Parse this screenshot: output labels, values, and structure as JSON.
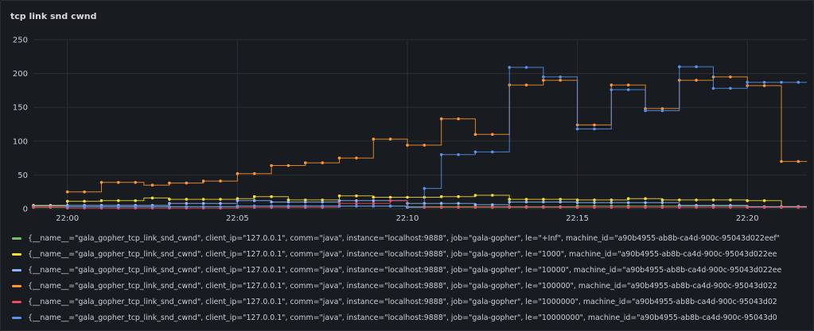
{
  "panel": {
    "title": "tcp link snd cwnd"
  },
  "chart_data": {
    "type": "line",
    "title": "tcp link snd cwnd",
    "ylim": [
      0,
      250
    ],
    "yticks": [
      0,
      50,
      100,
      150,
      200,
      250
    ],
    "xlim": [
      "21:59:00",
      "22:21:45"
    ],
    "xticks": [
      "22:00",
      "22:05",
      "22:10",
      "22:15",
      "22:20"
    ],
    "grid": true,
    "legend_position": "bottom",
    "series": [
      {
        "name": "{__name__=\"gala_gopher_tcp_link_snd_cwnd\", client_ip=\"127.0.0.1\", comm=\"java\", instance=\"localhost:9888\", job=\"gala-gopher\", le=\"+Inf\", machine_id=\"a90b4955-ab8b-ca4d-900c-95043d022eef\"",
        "color": "#73bf69",
        "points": [
          [
            "21:59:00",
            2
          ],
          [
            "22:00:00",
            3
          ],
          [
            "22:05:00",
            4
          ],
          [
            "22:10:00",
            3
          ],
          [
            "22:15:00",
            4
          ],
          [
            "22:20:00",
            3
          ],
          [
            "22:21:45",
            3
          ]
        ]
      },
      {
        "name": "{__name__=\"gala_gopher_tcp_link_snd_cwnd\", client_ip=\"127.0.0.1\", comm=\"java\", instance=\"localhost:9888\", job=\"gala-gopher\", le=\"1000\", machine_id=\"a90b4955-ab8b-ca4d-900c-95043d022ee",
        "color": "#fade2a",
        "points": [
          [
            "21:59:00",
            5
          ],
          [
            "22:00:00",
            11
          ],
          [
            "22:01:00",
            12
          ],
          [
            "22:02:15",
            16
          ],
          [
            "22:03:00",
            14
          ],
          [
            "22:05:00",
            15
          ],
          [
            "22:05:30",
            18
          ],
          [
            "22:06:30",
            13
          ],
          [
            "22:08:00",
            19
          ],
          [
            "22:09:00",
            17
          ],
          [
            "22:11:00",
            18
          ],
          [
            "22:12:00",
            20
          ],
          [
            "22:13:00",
            14
          ],
          [
            "22:15:00",
            13
          ],
          [
            "22:16:30",
            15
          ],
          [
            "22:17:30",
            13
          ],
          [
            "22:20:00",
            12
          ],
          [
            "22:21:00",
            3
          ],
          [
            "22:21:45",
            3
          ]
        ]
      },
      {
        "name": "{__name__=\"gala_gopher_tcp_link_snd_cwnd\", client_ip=\"127.0.0.1\", comm=\"java\", instance=\"localhost:9888\", job=\"gala-gopher\", le=\"10000\", machine_id=\"a90b4955-ab8b-ca4d-900c-95043d022ee",
        "color": "#8ab8ff",
        "points": [
          [
            "21:59:00",
            4
          ],
          [
            "22:00:00",
            5
          ],
          [
            "22:03:00",
            8
          ],
          [
            "22:05:00",
            12
          ],
          [
            "22:06:00",
            10
          ],
          [
            "22:08:00",
            12
          ],
          [
            "22:10:00",
            8
          ],
          [
            "22:12:00",
            6
          ],
          [
            "22:13:00",
            10
          ],
          [
            "22:15:00",
            9
          ],
          [
            "22:18:00",
            5
          ],
          [
            "22:20:00",
            3
          ],
          [
            "22:21:45",
            3
          ]
        ]
      },
      {
        "name": "{__name__=\"gala_gopher_tcp_link_snd_cwnd\", client_ip=\"127.0.0.1\", comm=\"java\", instance=\"localhost:9888\", job=\"gala-gopher\", le=\"100000\", machine_id=\"a90b4955-ab8b-ca4d-900c-95043d022",
        "color": "#ff9830",
        "points": [
          [
            "22:00:00",
            25
          ],
          [
            "22:01:00",
            39
          ],
          [
            "22:02:15",
            35
          ],
          [
            "22:03:00",
            38
          ],
          [
            "22:04:00",
            41
          ],
          [
            "22:05:00",
            52
          ],
          [
            "22:06:00",
            64
          ],
          [
            "22:07:00",
            68
          ],
          [
            "22:08:00",
            75
          ],
          [
            "22:09:00",
            103
          ],
          [
            "22:10:00",
            94
          ],
          [
            "22:11:00",
            133
          ],
          [
            "22:12:00",
            110
          ],
          [
            "22:13:00",
            183
          ],
          [
            "22:14:00",
            190
          ],
          [
            "22:15:00",
            124
          ],
          [
            "22:16:00",
            183
          ],
          [
            "22:17:00",
            148
          ],
          [
            "22:18:00",
            190
          ],
          [
            "22:19:00",
            195
          ],
          [
            "22:20:00",
            182
          ],
          [
            "22:21:00",
            70
          ],
          [
            "22:21:45",
            70
          ]
        ]
      },
      {
        "name": "{__name__=\"gala_gopher_tcp_link_snd_cwnd\", client_ip=\"127.0.0.1\", comm=\"java\", instance=\"localhost:9888\", job=\"gala-gopher\", le=\"1000000\", machine_id=\"a90b4955-ab8b-ca4d-900c-95043d02",
        "color": "#f2495c",
        "points": [
          [
            "21:59:00",
            2
          ],
          [
            "22:00:00",
            1
          ],
          [
            "22:05:00",
            2
          ],
          [
            "22:08:00",
            8
          ],
          [
            "22:09:30",
            12
          ],
          [
            "22:10:00",
            2
          ],
          [
            "22:15:00",
            2
          ],
          [
            "22:20:00",
            2
          ],
          [
            "22:21:45",
            2
          ]
        ]
      },
      {
        "name": "{__name__=\"gala_gopher_tcp_link_snd_cwnd\", client_ip=\"127.0.0.1\", comm=\"java\", instance=\"localhost:9888\", job=\"gala-gopher\", le=\"10000000\", machine_id=\"a90b4955-ab8b-ca4d-900c-95043d0",
        "color": "#5794f2",
        "points": [
          [
            "22:00:00",
            3
          ],
          [
            "22:05:00",
            4
          ],
          [
            "22:10:00",
            2
          ],
          [
            "22:10:30",
            30
          ],
          [
            "22:11:00",
            80
          ],
          [
            "22:12:00",
            84
          ],
          [
            "22:13:00",
            209
          ],
          [
            "22:14:00",
            195
          ],
          [
            "22:15:00",
            118
          ],
          [
            "22:16:00",
            176
          ],
          [
            "22:17:00",
            145
          ],
          [
            "22:18:00",
            210
          ],
          [
            "22:19:00",
            178
          ],
          [
            "22:20:00",
            187
          ],
          [
            "22:21:45",
            187
          ]
        ]
      }
    ]
  }
}
